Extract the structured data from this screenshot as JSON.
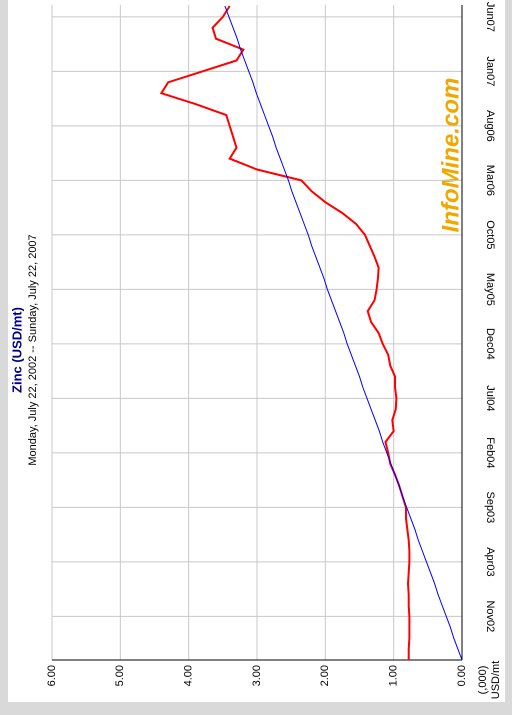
{
  "chart_data": {
    "type": "line",
    "title": "Zinc (USD/mt)",
    "subtitle": "Monday, July 22, 2002  --  Sunday, July 22, 2007",
    "y_label": [
      "(,000)",
      "USD/mt"
    ],
    "watermark": "InfoMine.com",
    "categories": [
      null,
      null,
      null,
      null,
      "Nov02",
      null,
      null,
      null,
      null,
      "Apr03",
      null,
      null,
      null,
      null,
      "Sep03",
      null,
      null,
      null,
      null,
      "Feb04",
      null,
      null,
      null,
      null,
      "Jul04",
      null,
      null,
      null,
      null,
      "Dec04",
      null,
      null,
      null,
      null,
      "May05",
      null,
      null,
      null,
      null,
      "Oct05",
      null,
      null,
      null,
      null,
      "Mar06",
      null,
      null,
      null,
      null,
      "Aug06",
      null,
      null,
      null,
      null,
      "Jan07",
      null,
      null,
      null,
      null,
      "Jun07",
      null
    ],
    "series": [
      {
        "color": "#ff0000",
        "values": [
          0.78,
          0.78,
          0.77,
          0.77,
          0.77,
          0.78,
          0.78,
          0.79,
          0.78,
          0.77,
          0.77,
          0.78,
          0.8,
          0.82,
          0.82,
          0.87,
          0.92,
          0.98,
          1.05,
          1.08,
          1.12,
          1.0,
          1.02,
          0.97,
          0.96,
          0.98,
          0.98,
          1.05,
          1.08,
          1.16,
          1.22,
          1.33,
          1.38,
          1.28,
          1.25,
          1.23,
          1.22,
          1.28,
          1.35,
          1.42,
          1.55,
          1.75,
          2.0,
          2.2,
          2.35,
          3.0,
          3.4,
          3.3,
          3.35,
          3.4,
          3.45,
          3.9,
          4.4,
          4.3,
          3.8,
          3.3,
          3.2,
          3.6,
          3.65,
          3.5,
          3.4
        ]
      },
      {
        "color": "#0000ff",
        "values": [
          0.0,
          0.06,
          0.12,
          0.17,
          0.23,
          0.29,
          0.35,
          0.4,
          0.46,
          0.52,
          0.58,
          0.64,
          0.69,
          0.75,
          0.81,
          0.87,
          0.92,
          0.98,
          1.04,
          1.1,
          1.16,
          1.21,
          1.27,
          1.33,
          1.39,
          1.45,
          1.5,
          1.56,
          1.62,
          1.68,
          1.73,
          1.79,
          1.85,
          1.91,
          1.97,
          2.02,
          2.08,
          2.14,
          2.2,
          2.25,
          2.31,
          2.37,
          2.43,
          2.49,
          2.54,
          2.6,
          2.66,
          2.72,
          2.77,
          2.83,
          2.89,
          2.95,
          3.01,
          3.06,
          3.12,
          3.18,
          3.24,
          3.29,
          3.35,
          3.41,
          3.47
        ]
      }
    ],
    "ylim": [
      0,
      6
    ],
    "yticks": [
      {
        "value": 0,
        "label": "0.00"
      },
      {
        "value": 1,
        "label": "1.00"
      },
      {
        "value": 2,
        "label": "2.00"
      },
      {
        "value": 3,
        "label": "3.00"
      },
      {
        "value": 4,
        "label": "4.00"
      },
      {
        "value": 5,
        "label": "5.00"
      },
      {
        "value": 6,
        "label": "6.00"
      }
    ],
    "grid": true
  }
}
